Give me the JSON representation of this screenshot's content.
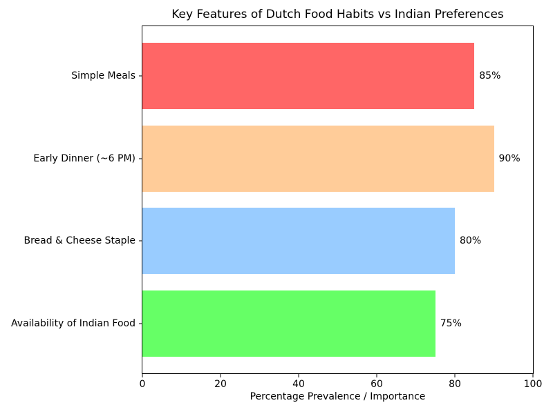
{
  "chart_data": {
    "type": "bar",
    "orientation": "horizontal",
    "title": "Key Features of Dutch Food Habits vs Indian Preferences",
    "categories": [
      "Simple Meals",
      "Early Dinner (~6 PM)",
      "Bread & Cheese Staple",
      "Availability of Indian Food"
    ],
    "values": [
      85,
      90,
      80,
      75
    ],
    "value_labels": [
      "85%",
      "90%",
      "80%",
      "75%"
    ],
    "bar_colors": [
      "#ff6666",
      "#ffcc99",
      "#99ccff",
      "#66ff66"
    ],
    "xlabel": "Percentage Prevalence / Importance",
    "xlim": [
      0,
      100
    ],
    "x_ticks": [
      0,
      20,
      40,
      60,
      80,
      100
    ],
    "grid": false,
    "legend": "none",
    "background_color": "#ffffff",
    "text_color": "#000000"
  }
}
